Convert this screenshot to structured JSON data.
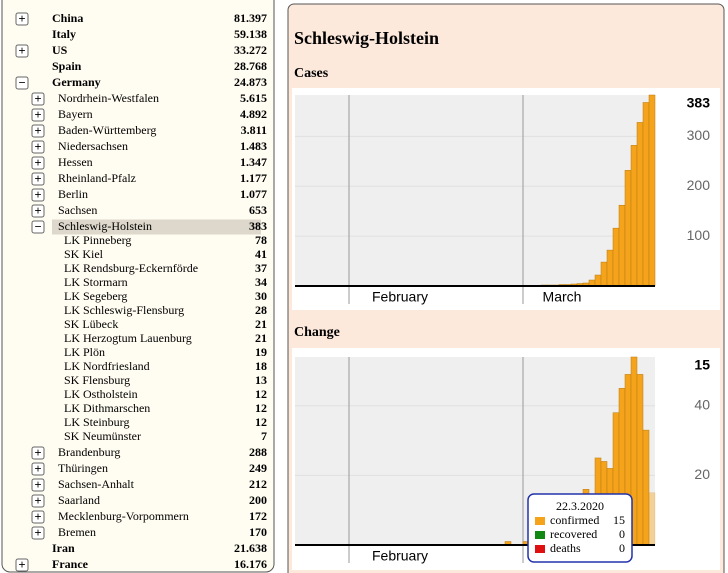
{
  "tree": {
    "rows": [
      {
        "label": "China",
        "value": "81.397",
        "level": 0,
        "toggle": "+"
      },
      {
        "label": "Italy",
        "value": "59.138",
        "level": 0
      },
      {
        "label": "US",
        "value": "33.272",
        "level": 0,
        "toggle": "+"
      },
      {
        "label": "Spain",
        "value": "28.768",
        "level": 0
      },
      {
        "label": "Germany",
        "value": "24.873",
        "level": 0,
        "toggle": "−"
      },
      {
        "label": "Nordrhein-Westfalen",
        "value": "5.615",
        "level": 1,
        "toggle": "+"
      },
      {
        "label": "Bayern",
        "value": "4.892",
        "level": 1,
        "toggle": "+"
      },
      {
        "label": "Baden-Württemberg",
        "value": "3.811",
        "level": 1,
        "toggle": "+"
      },
      {
        "label": "Niedersachsen",
        "value": "1.483",
        "level": 1,
        "toggle": "+"
      },
      {
        "label": "Hessen",
        "value": "1.347",
        "level": 1,
        "toggle": "+"
      },
      {
        "label": "Rheinland-Pfalz",
        "value": "1.177",
        "level": 1,
        "toggle": "+"
      },
      {
        "label": "Berlin",
        "value": "1.077",
        "level": 1,
        "toggle": "+"
      },
      {
        "label": "Sachsen",
        "value": "653",
        "level": 1,
        "toggle": "+"
      },
      {
        "label": "Schleswig-Holstein",
        "value": "383",
        "level": 1,
        "toggle": "−",
        "selected": true
      },
      {
        "label": "LK Pinneberg",
        "value": "78",
        "level": 2
      },
      {
        "label": "SK Kiel",
        "value": "41",
        "level": 2
      },
      {
        "label": "LK Rendsburg-Eckernförde",
        "value": "37",
        "level": 2
      },
      {
        "label": "LK Stormarn",
        "value": "34",
        "level": 2
      },
      {
        "label": "LK Segeberg",
        "value": "30",
        "level": 2
      },
      {
        "label": "LK Schleswig-Flensburg",
        "value": "28",
        "level": 2
      },
      {
        "label": "SK Lübeck",
        "value": "21",
        "level": 2
      },
      {
        "label": "LK Herzogtum Lauenburg",
        "value": "21",
        "level": 2
      },
      {
        "label": "LK Plön",
        "value": "19",
        "level": 2
      },
      {
        "label": "LK Nordfriesland",
        "value": "18",
        "level": 2
      },
      {
        "label": "SK Flensburg",
        "value": "13",
        "level": 2
      },
      {
        "label": "LK Ostholstein",
        "value": "12",
        "level": 2
      },
      {
        "label": "LK Dithmarschen",
        "value": "12",
        "level": 2
      },
      {
        "label": "LK Steinburg",
        "value": "12",
        "level": 2
      },
      {
        "label": "SK Neumünster",
        "value": "7",
        "level": 2
      },
      {
        "label": "Brandenburg",
        "value": "288",
        "level": 1,
        "toggle": "+"
      },
      {
        "label": "Thüringen",
        "value": "249",
        "level": 1,
        "toggle": "+"
      },
      {
        "label": "Sachsen-Anhalt",
        "value": "212",
        "level": 1,
        "toggle": "+"
      },
      {
        "label": "Saarland",
        "value": "200",
        "level": 1,
        "toggle": "+"
      },
      {
        "label": "Mecklenburg-Vorpommern",
        "value": "172",
        "level": 1,
        "toggle": "+"
      },
      {
        "label": "Bremen",
        "value": "170",
        "level": 1,
        "toggle": "+"
      },
      {
        "label": "Iran",
        "value": "21.638",
        "level": 0
      },
      {
        "label": "France",
        "value": "16.176",
        "level": 0,
        "toggle": "+"
      }
    ]
  },
  "panel": {
    "title": "Schleswig-Holstein"
  },
  "chart_data": [
    {
      "type": "bar",
      "title": "Cases",
      "color": "#f5a31a",
      "categories": [
        null,
        null,
        null,
        null,
        null,
        null,
        null,
        null,
        null,
        null,
        null,
        null,
        null,
        null,
        null,
        null,
        null,
        "February",
        null,
        null,
        null,
        null,
        null,
        null,
        null,
        null,
        null,
        null,
        null,
        null,
        null,
        null,
        null,
        null,
        null,
        null,
        null,
        null,
        null,
        null,
        null,
        null,
        null,
        null,
        "March",
        null,
        null,
        null,
        null,
        null,
        null,
        null,
        null,
        null,
        null,
        null,
        null,
        null,
        null,
        null
      ],
      "values": [
        0,
        0,
        0,
        0,
        0,
        0,
        0,
        0,
        0,
        0,
        0,
        0,
        0,
        0,
        0,
        0,
        0,
        0,
        0,
        0,
        0,
        0,
        0,
        0,
        0,
        0,
        0,
        0,
        0,
        0,
        0,
        0,
        0,
        0,
        0,
        0,
        0,
        0,
        1,
        1,
        1,
        2,
        2,
        2,
        3,
        3,
        4,
        5,
        6,
        12,
        22,
        48,
        72,
        116,
        162,
        232,
        282,
        328,
        368,
        383
      ],
      "ylim": [
        0,
        383
      ],
      "yticks": [
        100,
        200,
        300
      ],
      "annotation": "383"
    },
    {
      "type": "bar",
      "title": "Change",
      "color": "#f5a31a",
      "categories": [
        null,
        null,
        null,
        null,
        null,
        null,
        null,
        null,
        null,
        null,
        null,
        null,
        null,
        null,
        null,
        null,
        null,
        "February",
        null,
        null,
        null,
        null,
        null,
        null,
        null,
        null,
        null,
        null,
        null,
        null,
        null,
        null,
        null,
        null,
        null,
        null,
        null,
        null,
        null,
        null,
        null,
        null,
        null,
        null,
        "March",
        null,
        null,
        null,
        null,
        null,
        null,
        null,
        null,
        null,
        null,
        null,
        null,
        null,
        null,
        null
      ],
      "values": [
        0,
        0,
        0,
        0,
        0,
        0,
        0,
        0,
        0,
        0,
        0,
        0,
        0,
        0,
        0,
        0,
        0,
        0,
        0,
        0,
        0,
        0,
        0,
        0,
        0,
        0,
        0,
        0,
        0,
        0,
        0,
        0,
        0,
        0,
        0,
        1,
        0,
        0,
        1,
        0,
        0,
        1,
        0,
        0,
        1,
        0,
        1,
        1,
        16,
        12,
        25,
        24,
        22,
        38,
        45,
        49,
        54,
        49,
        33,
        15
      ],
      "ylim": [
        0,
        54
      ],
      "yticks": [
        20,
        40
      ],
      "annotation": "15",
      "tooltip": {
        "title": "22.3.2020",
        "items": [
          {
            "name": "confirmed",
            "color": "#f5a31a",
            "value": 15
          },
          {
            "name": "recovered",
            "color": "#118811",
            "value": 0
          },
          {
            "name": "deaths",
            "color": "#e01010",
            "value": 0
          }
        ]
      }
    }
  ]
}
